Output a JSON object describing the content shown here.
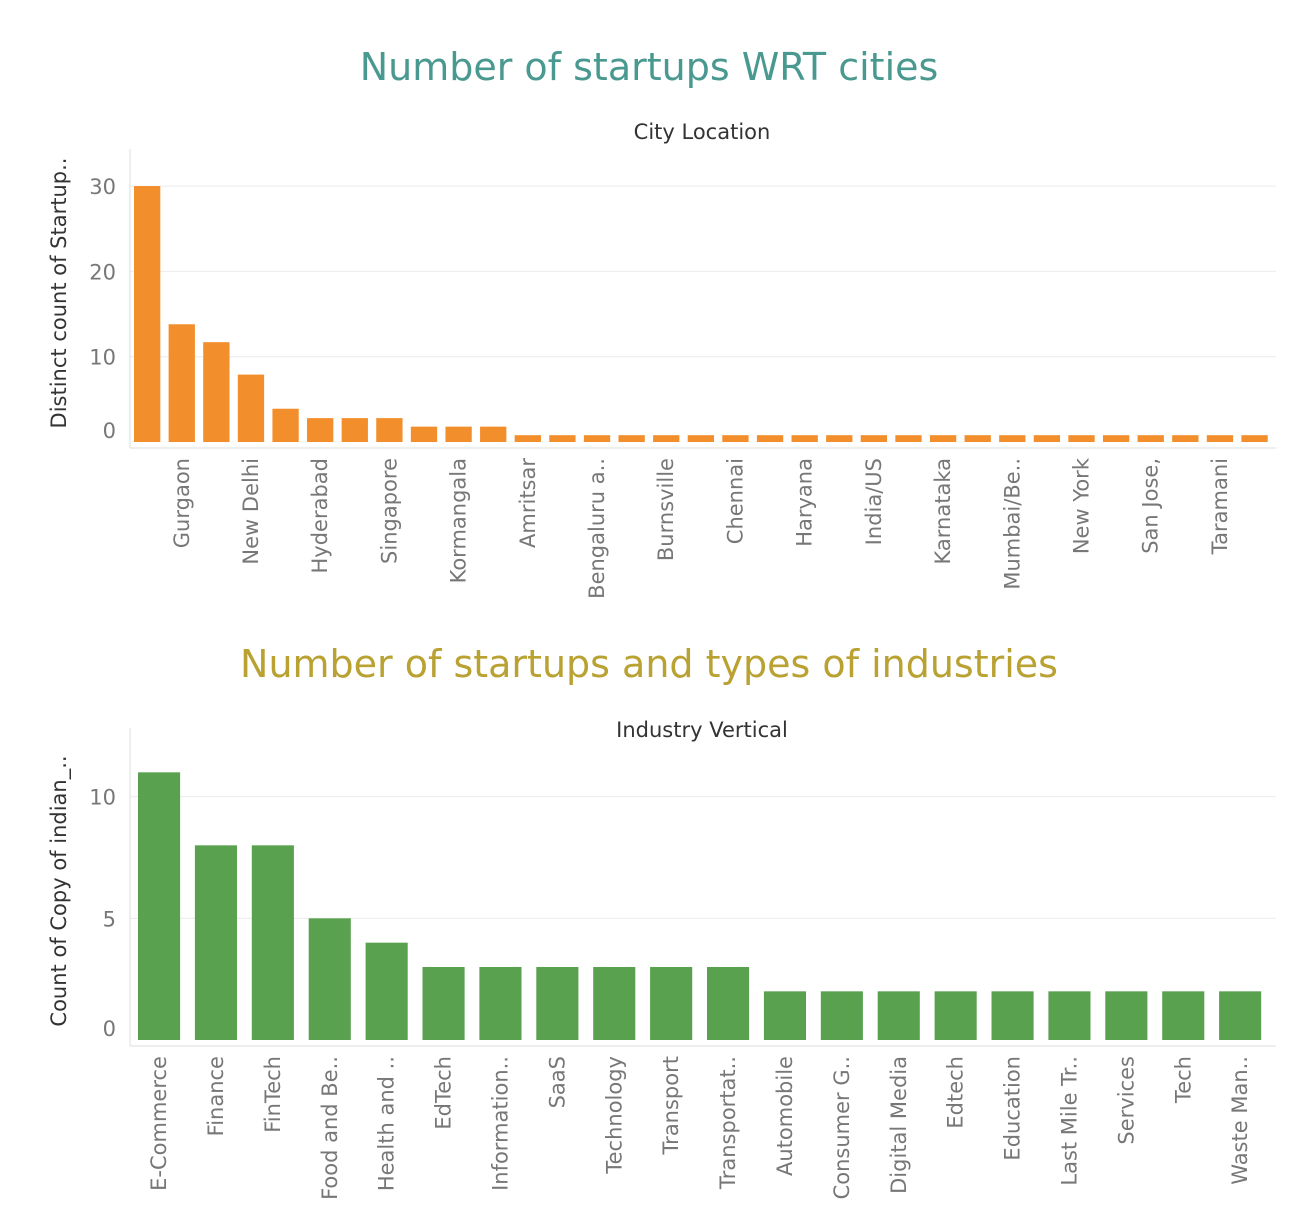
{
  "colors": {
    "title1": "#4a9990",
    "title2": "#b9a132",
    "bar1": "#f28e2b",
    "bar2": "#59a14f"
  },
  "chart_data": [
    {
      "type": "bar",
      "title": "Number of startups WRT cities",
      "header": "City  Location",
      "ylabel": "Distinct count of Startup..",
      "ylim": [
        0,
        32
      ],
      "yticks": [
        0,
        10,
        20,
        30
      ],
      "grid": true,
      "categories": [
        "",
        "Gurgaon",
        "",
        "New Delhi",
        "",
        "Hyderabad",
        "",
        "Singapore",
        "",
        "Kormangala",
        "",
        "Amritsar",
        "",
        "Bengaluru a..",
        "",
        "Burnsville",
        "",
        "Chennai",
        "",
        "Haryana",
        "",
        "India/US",
        "",
        "Karnataka",
        "",
        "Mumbai/Be..",
        "",
        "New York",
        "",
        "San Jose,",
        "",
        "Taramani",
        ""
      ],
      "values": [
        30,
        13.8,
        11.7,
        7.9,
        3.9,
        2.8,
        2.8,
        2.8,
        1.8,
        1.8,
        1.8,
        0.8,
        0.8,
        0.8,
        0.8,
        0.8,
        0.8,
        0.8,
        0.8,
        0.8,
        0.8,
        0.8,
        0.8,
        0.8,
        0.8,
        0.8,
        0.8,
        0.8,
        0.8,
        0.8,
        0.8,
        0.8,
        0.8
      ]
    },
    {
      "type": "bar",
      "title": "Number of startups and types of industries",
      "header": "Industry Vertical",
      "ylabel": "Count of Copy of indian_..",
      "ylim": [
        0,
        12
      ],
      "yticks": [
        0,
        5,
        10
      ],
      "grid": true,
      "categories": [
        "E-Commerce",
        "Finance",
        "FinTech",
        "Food and Be..",
        "Health and ..",
        "EdTech",
        "Information..",
        "SaaS",
        "Technology",
        "Transport",
        "Transportat..",
        "Automobile",
        "Consumer G..",
        "Digital Media",
        "Edtech",
        "Education",
        "Last Mile Tr..",
        "Services",
        "Tech",
        "Waste Man.."
      ],
      "values": [
        11,
        8,
        8,
        5,
        4,
        3,
        3,
        3,
        3,
        3,
        3,
        2,
        2,
        2,
        2,
        2,
        2,
        2,
        2,
        2
      ]
    }
  ]
}
